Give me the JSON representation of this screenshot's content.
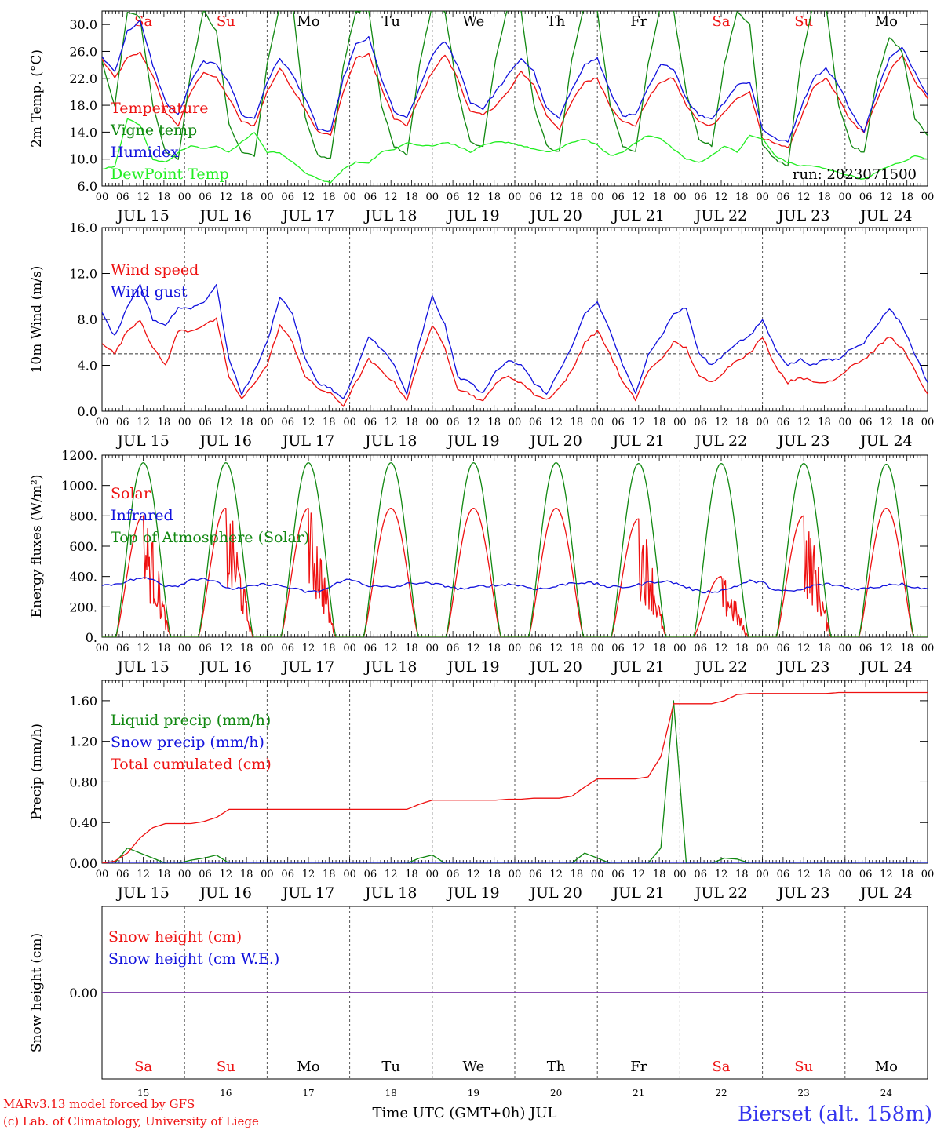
{
  "colors": {
    "red": "#ee1111",
    "darkgreen": "#118811",
    "blue": "#1111dd",
    "lightgreen": "#22ee22",
    "purple": "#7733aa",
    "axis": "#000000",
    "grid": "#555555",
    "station_label": "#3333ee"
  },
  "days": {
    "month_label": "JUL",
    "dates": [
      "15",
      "16",
      "17",
      "18",
      "19",
      "20",
      "21",
      "22",
      "23",
      "24"
    ],
    "weekdays": [
      "Sa",
      "Su",
      "Mo",
      "Tu",
      "We",
      "Th",
      "Fr",
      "Sa",
      "Su",
      "Mo"
    ],
    "weekend": [
      true,
      true,
      false,
      false,
      false,
      false,
      false,
      true,
      true,
      false
    ],
    "hour_ticks": [
      "00",
      "06",
      "12",
      "18"
    ],
    "final_hour": "00"
  },
  "footer": {
    "model_line": "MARv3.13 model forced by GFS",
    "copyright_line": "(c) Lab. of Climatology, University of Liege",
    "xlabel": "Time UTC (GMT+0h) JUL",
    "station": "Bierset (alt. 158m)"
  },
  "chart_data": [
    {
      "type": "line",
      "ylabel": "2m Temp. (°C)",
      "ylim": [
        6,
        32
      ],
      "yticks": [
        6,
        10,
        14,
        18,
        22,
        26,
        30
      ],
      "ytick_labels": [
        "6.0",
        "10.0",
        "14.0",
        "18.0",
        "22.0",
        "26.0",
        "30.0"
      ],
      "annotation": "run: 2023071500",
      "show_weekdays": true,
      "x_start": "2023-07-15 00 UTC",
      "x_end": "2023-07-25 00 UTC",
      "series": [
        {
          "name": "Temperature",
          "color": "red",
          "values": [
            24.8,
            22.0,
            25.0,
            25.8,
            22.5,
            17.0,
            15.0,
            20.0,
            23.0,
            22.0,
            19.0,
            15.5,
            15.0,
            20.0,
            23.5,
            20.5,
            17.5,
            14.0,
            13.5,
            20.0,
            25.0,
            25.5,
            20.5,
            16.0,
            15.0,
            19.0,
            23.0,
            25.5,
            22.0,
            17.0,
            16.5,
            18.0,
            20.0,
            23.0,
            21.0,
            16.5,
            14.5,
            18.5,
            21.5,
            22.0,
            18.0,
            15.5,
            15.0,
            19.0,
            21.5,
            22.0,
            18.0,
            15.5,
            15.0,
            17.0,
            19.0,
            20.0,
            13.0,
            12.5,
            11.5,
            16.0,
            20.5,
            22.0,
            19.0,
            15.5,
            14.0,
            18.5,
            23.0,
            25.5,
            21.5,
            19.0
          ]
        },
        {
          "name": "Vigne temp",
          "color": "darkgreen",
          "values": [
            24.5,
            18.0,
            32.0,
            31.0,
            18.0,
            11.0,
            10.0,
            23.0,
            32.0,
            29.0,
            15.0,
            11.0,
            10.5,
            24.0,
            33.0,
            33.0,
            16.0,
            10.5,
            10.0,
            24.0,
            32.0,
            32.0,
            18.0,
            12.0,
            10.5,
            24.0,
            33.0,
            32.0,
            20.0,
            12.5,
            12.0,
            25.0,
            33.0,
            32.0,
            18.0,
            12.0,
            11.0,
            25.0,
            33.0,
            32.0,
            18.0,
            12.0,
            11.0,
            24.0,
            33.0,
            32.0,
            20.0,
            13.0,
            12.0,
            24.0,
            32.0,
            30.0,
            12.0,
            10.0,
            9.0,
            24.0,
            33.0,
            33.0,
            18.0,
            12.0,
            11.0,
            22.0,
            28.0,
            26.0,
            16.0,
            13.5
          ]
        },
        {
          "name": "Humidex",
          "color": "blue",
          "values": [
            25.2,
            23.0,
            29.0,
            30.5,
            24.0,
            18.5,
            16.5,
            21.5,
            24.5,
            24.0,
            21.5,
            16.5,
            16.0,
            21.5,
            25.0,
            22.5,
            19.0,
            14.5,
            14.0,
            22.0,
            27.0,
            28.0,
            22.0,
            17.0,
            16.0,
            20.5,
            25.5,
            27.5,
            24.0,
            18.5,
            17.5,
            20.0,
            22.5,
            25.0,
            23.0,
            17.5,
            16.0,
            20.5,
            24.0,
            25.0,
            20.0,
            16.5,
            16.5,
            20.5,
            24.0,
            23.5,
            19.0,
            16.5,
            16.0,
            18.5,
            21.0,
            21.5,
            14.5,
            13.0,
            12.5,
            17.5,
            22.0,
            23.5,
            21.0,
            17.0,
            14.0,
            20.0,
            25.0,
            26.5,
            23.0,
            19.5
          ]
        },
        {
          "name": "DewPoint Temp",
          "color": "lightgreen",
          "values": [
            8.5,
            9.0,
            16.0,
            15.0,
            10.0,
            9.5,
            11.0,
            12.0,
            11.5,
            12.0,
            11.0,
            12.5,
            14.0,
            11.0,
            11.0,
            9.5,
            8.0,
            7.0,
            6.5,
            8.5,
            9.5,
            9.5,
            11.0,
            11.5,
            12.5,
            12.0,
            12.0,
            12.5,
            12.0,
            11.0,
            12.0,
            12.5,
            12.5,
            12.0,
            11.5,
            11.0,
            11.5,
            12.5,
            13.0,
            12.0,
            10.5,
            11.0,
            12.5,
            13.5,
            13.0,
            11.5,
            10.0,
            9.5,
            10.5,
            12.0,
            11.0,
            13.5,
            13.0,
            10.5,
            9.5,
            9.0,
            9.0,
            8.5,
            8.0,
            7.5,
            7.0,
            8.0,
            9.0,
            9.5,
            10.5,
            10.0
          ]
        }
      ]
    },
    {
      "type": "line",
      "ylabel": "10m Wind (m/s)",
      "ylim": [
        0,
        16
      ],
      "yticks": [
        0,
        4,
        8,
        12,
        16
      ],
      "ytick_labels": [
        "0.0",
        "4.0",
        "8.0",
        "12.0",
        "16.0"
      ],
      "reference_line": 5,
      "x_start": "2023-07-15 00 UTC",
      "x_end": "2023-07-25 00 UTC",
      "series": [
        {
          "name": "Wind speed",
          "color": "red",
          "values": [
            6.0,
            5.0,
            7.0,
            8.0,
            5.5,
            4.0,
            7.0,
            7.0,
            7.5,
            8.0,
            3.0,
            1.0,
            2.5,
            4.0,
            7.5,
            6.0,
            3.0,
            2.0,
            1.5,
            0.5,
            2.5,
            4.5,
            3.5,
            2.5,
            1.0,
            4.5,
            7.5,
            5.5,
            2.0,
            1.5,
            0.8,
            2.5,
            3.0,
            2.5,
            1.5,
            1.0,
            2.0,
            3.5,
            6.0,
            7.0,
            5.0,
            2.5,
            1.0,
            3.5,
            4.5,
            6.0,
            5.5,
            3.0,
            2.5,
            3.5,
            4.5,
            5.0,
            6.5,
            4.0,
            2.5,
            3.0,
            2.5,
            2.5,
            3.0,
            4.0,
            4.5,
            5.5,
            6.5,
            5.5,
            3.5,
            1.5
          ]
        },
        {
          "name": "Wind gust",
          "color": "blue",
          "values": [
            8.5,
            6.5,
            9.0,
            11.0,
            8.0,
            7.5,
            9.0,
            9.0,
            9.5,
            11.0,
            4.5,
            1.5,
            3.5,
            6.0,
            10.0,
            8.5,
            4.5,
            2.5,
            2.0,
            1.0,
            3.5,
            6.5,
            5.5,
            4.0,
            1.5,
            6.0,
            10.0,
            7.5,
            3.0,
            2.5,
            1.5,
            3.5,
            4.5,
            4.0,
            2.5,
            1.5,
            3.5,
            5.5,
            8.5,
            9.5,
            7.0,
            4.0,
            1.5,
            5.0,
            6.5,
            8.5,
            9.0,
            5.0,
            4.0,
            5.0,
            6.0,
            6.5,
            8.0,
            5.5,
            4.0,
            4.5,
            4.0,
            4.5,
            4.5,
            5.5,
            6.0,
            7.5,
            9.0,
            7.5,
            5.0,
            2.5
          ]
        }
      ]
    },
    {
      "type": "line",
      "ylabel": "Energy fluxes (W/m²)",
      "ylim": [
        0,
        1200
      ],
      "yticks": [
        0,
        200,
        400,
        600,
        800,
        1000,
        1200
      ],
      "ytick_labels": [
        "0.",
        "200.",
        "400.",
        "600.",
        "800.",
        "1000.",
        "1200."
      ],
      "x_start": "2023-07-15 00 UTC",
      "x_end": "2023-07-25 00 UTC",
      "series": [
        {
          "name": "Solar",
          "color": "red",
          "shape": "daily",
          "peaks": [
            800,
            850,
            850,
            850,
            850,
            850,
            780,
            400,
            800,
            850
          ],
          "sunrise_hour": 4.0,
          "sunset_hour": 20.0
        },
        {
          "name": "Infrared",
          "color": "blue",
          "values": [
            340,
            350,
            370,
            390,
            380,
            340,
            340,
            380,
            390,
            360,
            320,
            320,
            340,
            350,
            340,
            320,
            300,
            300,
            330,
            380,
            370,
            340,
            330,
            330,
            350,
            360,
            350,
            340,
            320,
            320,
            340,
            340,
            350,
            340,
            320,
            320,
            340,
            360,
            360,
            350,
            330,
            330,
            340,
            360,
            370,
            360,
            330,
            300,
            300,
            310,
            340,
            370,
            360,
            310,
            300,
            310,
            340,
            350,
            340,
            320,
            320,
            330,
            350,
            350,
            330,
            320
          ]
        },
        {
          "name": "Top of Atmosphere (Solar)",
          "color": "darkgreen",
          "shape": "daily",
          "peaks": [
            1150,
            1150,
            1150,
            1150,
            1150,
            1150,
            1145,
            1145,
            1145,
            1140
          ],
          "sunrise_hour": 4.0,
          "sunset_hour": 20.0
        }
      ]
    },
    {
      "type": "line",
      "ylabel": "Precip (mm/h)",
      "ylim": [
        0,
        1.8
      ],
      "yticks": [
        0,
        0.4,
        0.8,
        1.2,
        1.6
      ],
      "ytick_labels": [
        "0.00",
        "0.40",
        "0.80",
        "1.20",
        "1.60"
      ],
      "x_start": "2023-07-15 00 UTC",
      "x_end": "2023-07-25 00 UTC",
      "series": [
        {
          "name": "Liquid precip (mm/h)",
          "color": "darkgreen",
          "values": [
            0,
            0,
            0.15,
            0.1,
            0.05,
            0,
            0,
            0.03,
            0.05,
            0.08,
            0,
            0,
            0,
            0,
            0,
            0,
            0,
            0,
            0,
            0,
            0,
            0,
            0,
            0,
            0,
            0.05,
            0.08,
            0,
            0,
            0,
            0,
            0,
            0,
            0,
            0,
            0,
            0,
            0,
            0.1,
            0.05,
            0,
            0,
            0,
            0,
            0.15,
            1.6,
            0,
            0,
            0,
            0.05,
            0.04,
            0,
            0,
            0,
            0,
            0,
            0,
            0,
            0,
            0,
            0,
            0,
            0,
            0,
            0,
            0
          ]
        },
        {
          "name": "Snow precip (mm/h)",
          "color": "blue",
          "values": [
            0,
            0,
            0,
            0,
            0,
            0,
            0,
            0,
            0,
            0,
            0,
            0,
            0,
            0,
            0,
            0,
            0,
            0,
            0,
            0,
            0,
            0,
            0,
            0,
            0,
            0,
            0,
            0,
            0,
            0,
            0,
            0,
            0,
            0,
            0,
            0,
            0,
            0,
            0,
            0,
            0,
            0,
            0,
            0,
            0,
            0,
            0,
            0,
            0,
            0,
            0,
            0,
            0,
            0,
            0,
            0,
            0,
            0,
            0,
            0,
            0,
            0,
            0,
            0,
            0,
            0
          ]
        },
        {
          "name": "Total cumulated (cm)",
          "color": "red",
          "values": [
            0,
            0.02,
            0.1,
            0.25,
            0.35,
            0.39,
            0.39,
            0.39,
            0.41,
            0.45,
            0.53,
            0.53,
            0.53,
            0.53,
            0.53,
            0.53,
            0.53,
            0.53,
            0.53,
            0.53,
            0.53,
            0.53,
            0.53,
            0.53,
            0.53,
            0.58,
            0.62,
            0.62,
            0.62,
            0.62,
            0.62,
            0.62,
            0.63,
            0.63,
            0.64,
            0.64,
            0.64,
            0.66,
            0.75,
            0.83,
            0.83,
            0.83,
            0.83,
            0.85,
            1.05,
            1.57,
            1.57,
            1.57,
            1.57,
            1.6,
            1.66,
            1.67,
            1.67,
            1.67,
            1.67,
            1.67,
            1.67,
            1.67,
            1.68,
            1.68,
            1.68,
            1.68,
            1.68,
            1.68,
            1.68,
            1.68
          ]
        }
      ]
    },
    {
      "type": "line",
      "ylabel": "Snow height (cm)",
      "ylim": [
        -1,
        1
      ],
      "yticks": [
        0
      ],
      "ytick_labels": [
        "0.00"
      ],
      "x_start": "2023-07-15 00 UTC",
      "x_end": "2023-07-25 00 UTC",
      "series": [
        {
          "name": "Snow height (cm)",
          "color": "red",
          "values": [
            0,
            0
          ]
        },
        {
          "name": "Snow height (cm W.E.)",
          "color": "blue",
          "values": [
            0,
            0
          ]
        }
      ]
    }
  ]
}
